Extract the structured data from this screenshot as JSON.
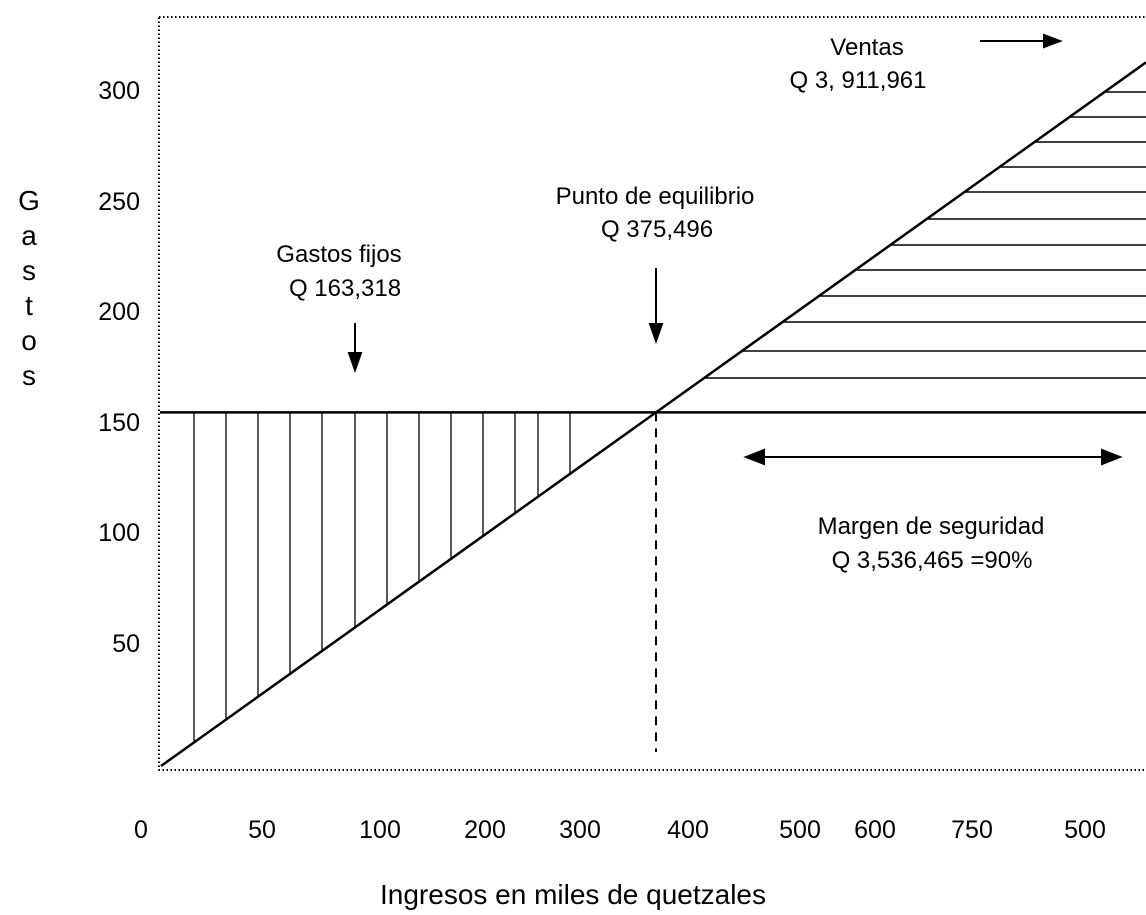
{
  "chart_data": {
    "type": "line",
    "title": "",
    "xlabel": "Ingresos en  miles de quetzales",
    "ylabel": "Gastos",
    "y_ticks": [
      "300",
      "250",
      "200",
      "150",
      "100",
      "50"
    ],
    "x_ticks": [
      "0",
      "50",
      "100",
      "200",
      "300",
      "400",
      "500",
      "600",
      "750",
      "500"
    ],
    "ylim": [
      0,
      325
    ],
    "grid": false,
    "series": [
      {
        "name": "Ventas",
        "x": [
          "0",
          "375,496",
          "3,911,961"
        ],
        "y": [
          0,
          160,
          330
        ]
      },
      {
        "name": "Gastos fijos",
        "x": [
          "0",
          "3,911,961"
        ],
        "y": [
          160,
          160
        ]
      }
    ],
    "fixed_cost_level": 160,
    "break_even_x_tick_position": 373,
    "annotations": {
      "ventas": {
        "label": "Ventas",
        "value": "Q  3, 911,961"
      },
      "punto_equilibrio": {
        "label": "Punto de equilibrio",
        "value": "Q  375,496"
      },
      "gastos_fijos": {
        "label": "Gastos fijos",
        "value": "Q 163,318"
      },
      "margen": {
        "label": "Margen de seguridad",
        "value": "Q 3,536,465  =90%"
      }
    }
  }
}
